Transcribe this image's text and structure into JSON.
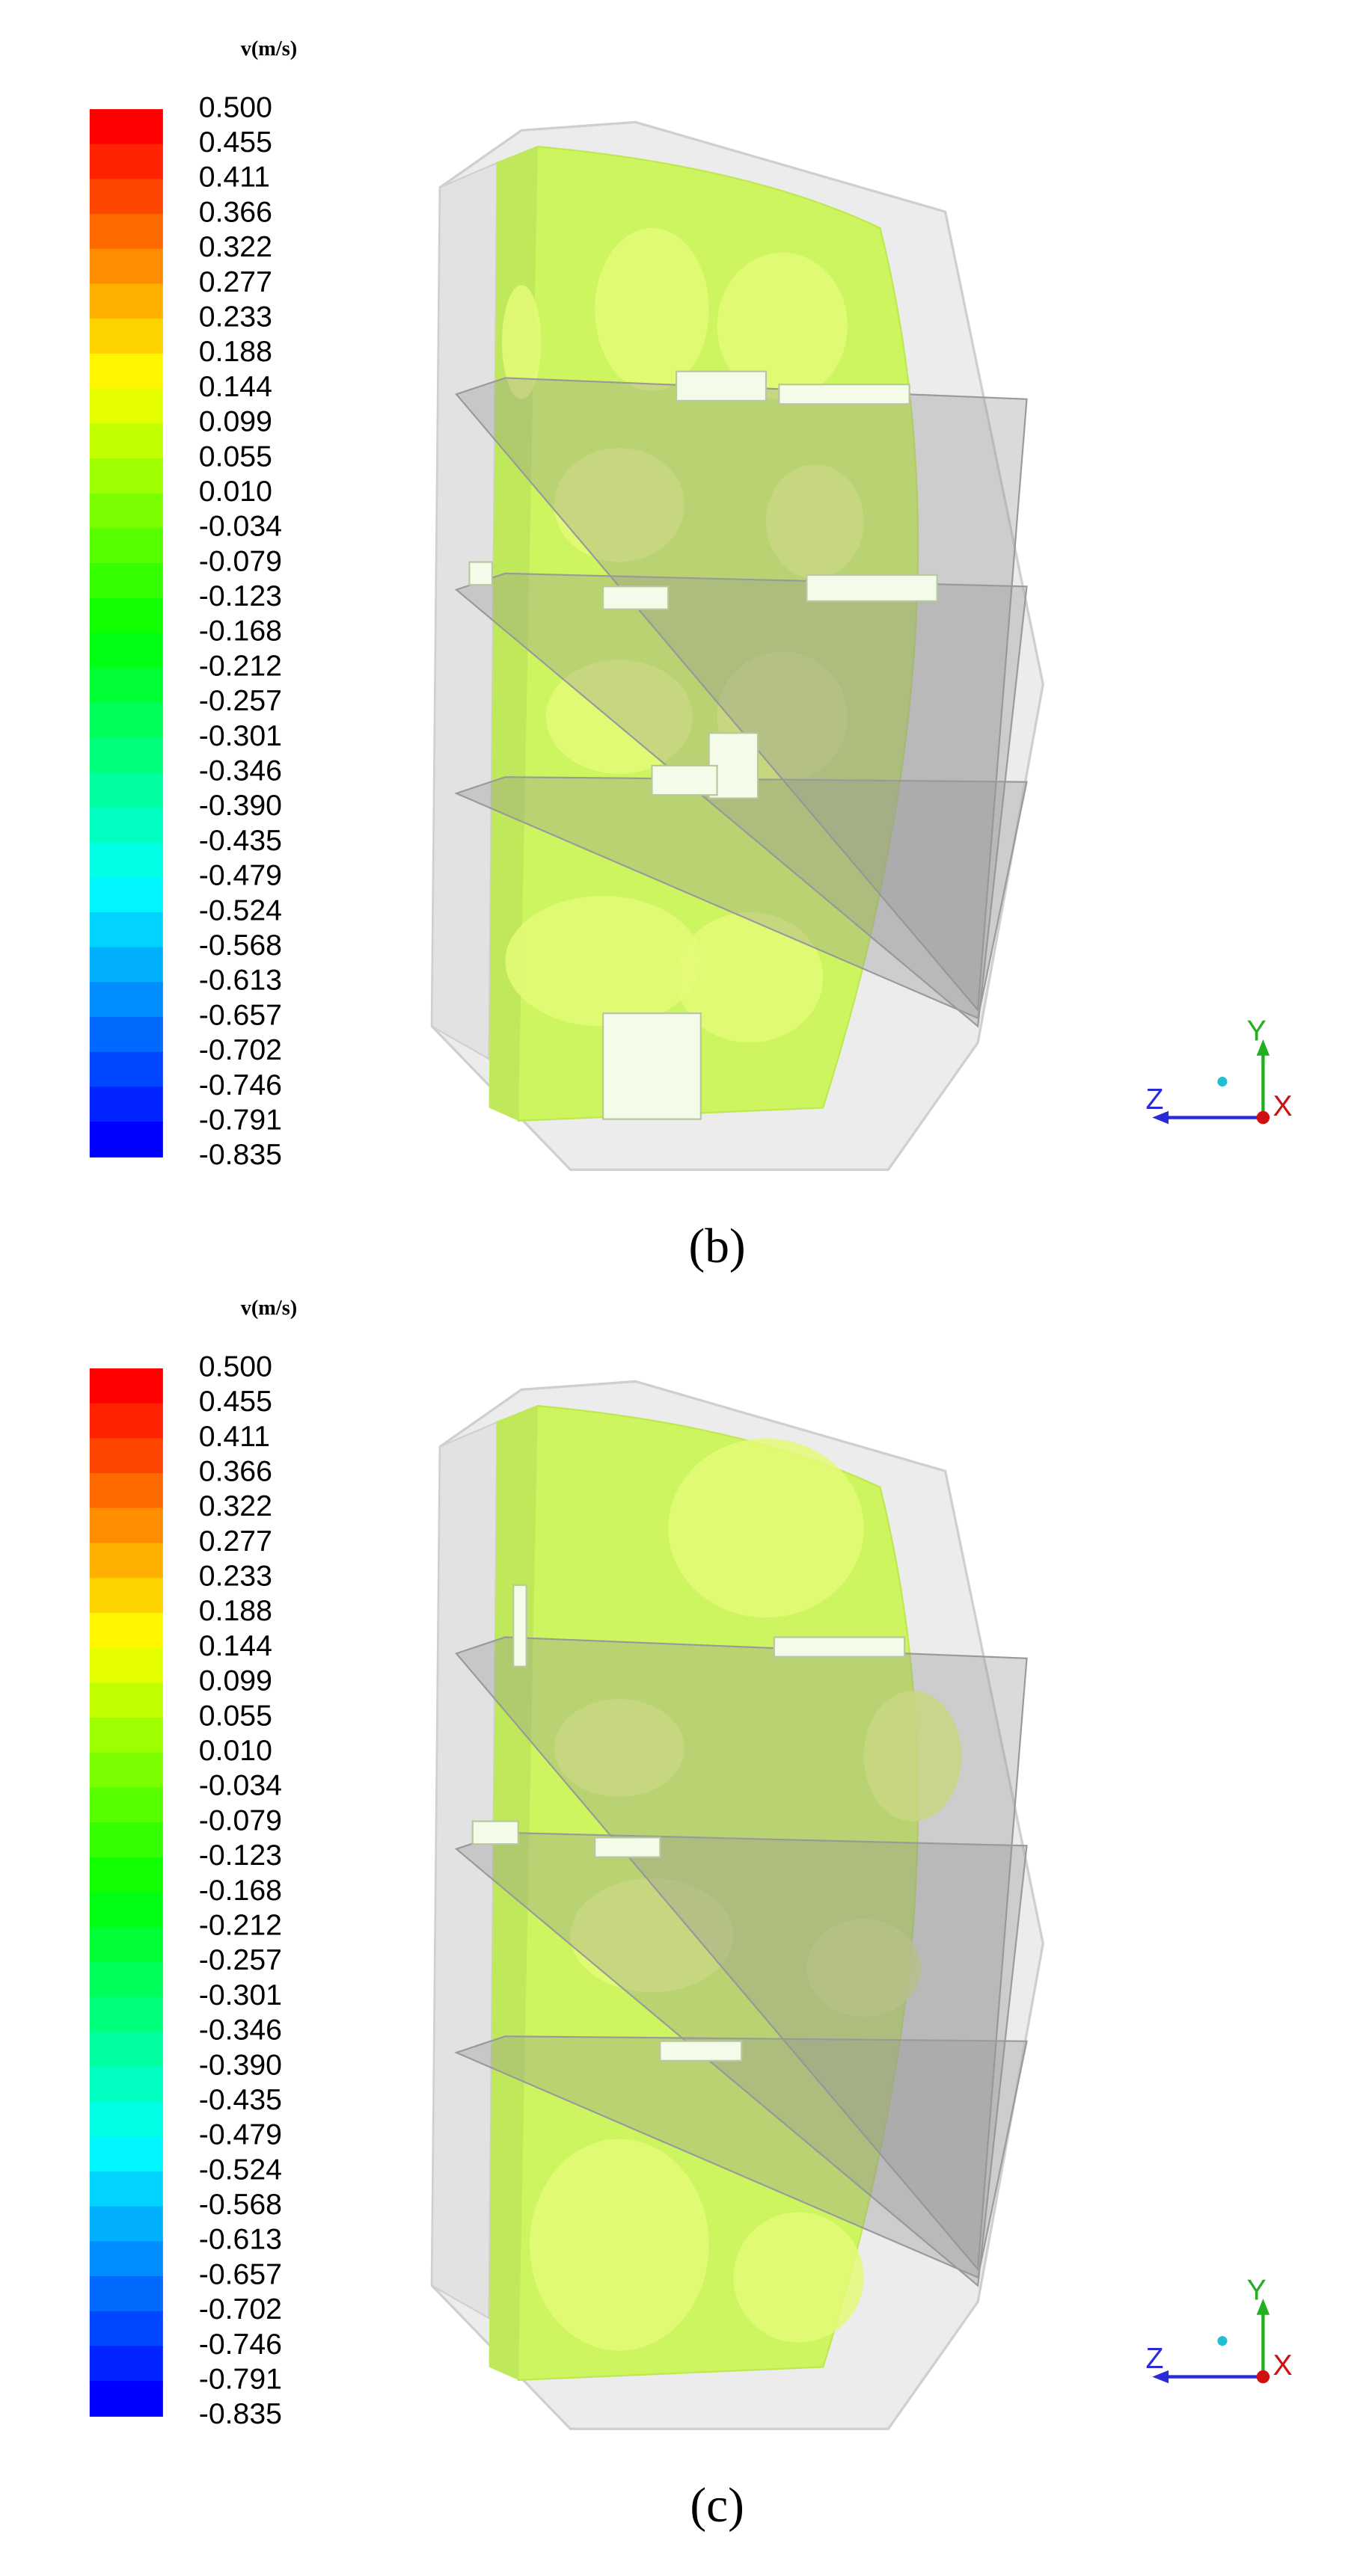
{
  "panels": [
    {
      "label": "(b)",
      "legend": {
        "title": "v(m/s)",
        "ticks": [
          "0.500",
          "0.455",
          "0.411",
          "0.366",
          "0.322",
          "0.277",
          "0.233",
          "0.188",
          "0.144",
          "0.099",
          "0.055",
          "0.010",
          "-0.034",
          "-0.079",
          "-0.123",
          "-0.168",
          "-0.212",
          "-0.257",
          "-0.301",
          "-0.346",
          "-0.390",
          "-0.435",
          "-0.479",
          "-0.524",
          "-0.568",
          "-0.613",
          "-0.657",
          "-0.702",
          "-0.746",
          "-0.791",
          "-0.835"
        ]
      },
      "axes": {
        "x": "X",
        "y": "Y",
        "z": "Z"
      }
    },
    {
      "label": "(c)",
      "legend": {
        "title": "v(m/s)",
        "ticks": [
          "0.500",
          "0.455",
          "0.411",
          "0.366",
          "0.322",
          "0.277",
          "0.233",
          "0.188",
          "0.144",
          "0.099",
          "0.055",
          "0.010",
          "-0.034",
          "-0.079",
          "-0.123",
          "-0.168",
          "-0.212",
          "-0.257",
          "-0.301",
          "-0.346",
          "-0.390",
          "-0.435",
          "-0.479",
          "-0.524",
          "-0.568",
          "-0.613",
          "-0.657",
          "-0.702",
          "-0.746",
          "-0.791",
          "-0.835"
        ]
      },
      "axes": {
        "x": "X",
        "y": "Y",
        "z": "Z"
      }
    }
  ]
}
